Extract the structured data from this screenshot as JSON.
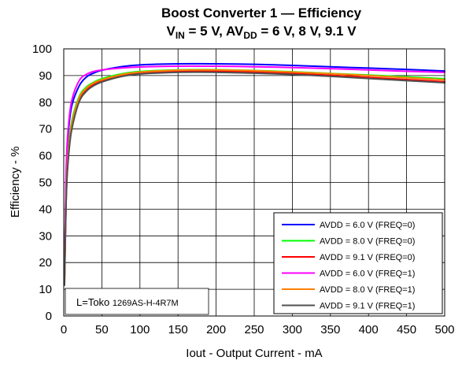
{
  "chart_data": {
    "type": "line",
    "title_line1": "Boost Converter 1 — Efficiency",
    "title_line2": {
      "v": "V",
      "v_sub": "IN",
      "mid": " = 5 V, AV",
      "av_sub": "DD",
      "end": " = 6 V, 8 V, 9.1 V"
    },
    "xlabel": "Iout - Output Current - mA",
    "ylabel": "Efficiency - %",
    "xlim": [
      0,
      500
    ],
    "ylim": [
      0,
      100
    ],
    "xticks": [
      "0",
      "50",
      "100",
      "150",
      "200",
      "250",
      "300",
      "350",
      "400",
      "450",
      "500"
    ],
    "yticks": [
      "0",
      "10",
      "20",
      "30",
      "40",
      "50",
      "60",
      "70",
      "80",
      "90",
      "100"
    ],
    "grid": true,
    "legend_position": "bottom-right",
    "annotation": {
      "prefix": "L=Toko ",
      "part": "1269AS-H-4R7M"
    },
    "series": [
      {
        "name": "AVDD = 6.0 V (FREQ=0)",
        "color": "#0000ff",
        "x": [
          1,
          3,
          5,
          10,
          20,
          30,
          40,
          50,
          75,
          100,
          150,
          200,
          250,
          300,
          350,
          400,
          450,
          500
        ],
        "y": [
          14,
          50,
          65,
          78,
          86,
          89.5,
          91,
          92,
          93.3,
          94,
          94.4,
          94.4,
          94.2,
          93.8,
          93.3,
          92.8,
          92.3,
          91.7
        ]
      },
      {
        "name": "AVDD = 8.0 V (FREQ=0)",
        "color": "#00ff00",
        "x": [
          1,
          3,
          5,
          10,
          20,
          30,
          40,
          50,
          75,
          100,
          150,
          200,
          250,
          300,
          350,
          400,
          450,
          500
        ],
        "y": [
          13,
          44,
          58,
          72,
          82,
          85.8,
          87.6,
          88.8,
          90.6,
          91.5,
          92.1,
          92.2,
          91.9,
          91.4,
          90.8,
          90.2,
          89.5,
          88.8
        ]
      },
      {
        "name": "AVDD = 9.1 V (FREQ=0)",
        "color": "#ff0000",
        "x": [
          1,
          3,
          5,
          10,
          20,
          30,
          40,
          50,
          75,
          100,
          150,
          200,
          250,
          300,
          350,
          400,
          450,
          500
        ],
        "y": [
          12,
          42,
          56,
          70,
          80.5,
          84.6,
          86.8,
          88,
          90,
          91,
          91.6,
          91.6,
          91.3,
          90.8,
          90.1,
          89.3,
          88.5,
          87.7
        ]
      },
      {
        "name": "AVDD = 6.0 V (FREQ=1)",
        "color": "#ff00ff",
        "x": [
          1,
          3,
          5,
          10,
          20,
          30,
          40,
          50,
          75,
          100,
          150,
          200,
          250,
          300,
          350,
          400,
          450,
          500
        ],
        "y": [
          15,
          52,
          67,
          80,
          88,
          90.5,
          91.6,
          92.1,
          92.8,
          93.2,
          93.5,
          93.5,
          93.3,
          93,
          92.6,
          92.1,
          91.6,
          91.2
        ]
      },
      {
        "name": "AVDD = 8.0 V (FREQ=1)",
        "color": "#ff8000",
        "x": [
          1,
          3,
          5,
          10,
          20,
          30,
          40,
          50,
          75,
          100,
          150,
          200,
          250,
          300,
          350,
          400,
          450,
          500
        ],
        "y": [
          12.5,
          43,
          57,
          71,
          81.5,
          85.3,
          87.3,
          88.4,
          90.3,
          91.3,
          92,
          92.1,
          91.8,
          91.3,
          90.7,
          90,
          89.2,
          88.4
        ]
      },
      {
        "name": "AVDD = 9.1 V (FREQ=1)",
        "color": "#505050",
        "x": [
          1,
          3,
          5,
          10,
          20,
          30,
          40,
          50,
          75,
          100,
          150,
          200,
          250,
          300,
          350,
          400,
          450,
          500
        ],
        "y": [
          11.5,
          41,
          55,
          69,
          80,
          84.2,
          86.3,
          87.6,
          89.6,
          90.6,
          91.2,
          91.2,
          90.9,
          90.4,
          89.7,
          88.9,
          88.1,
          87.3
        ]
      }
    ]
  }
}
